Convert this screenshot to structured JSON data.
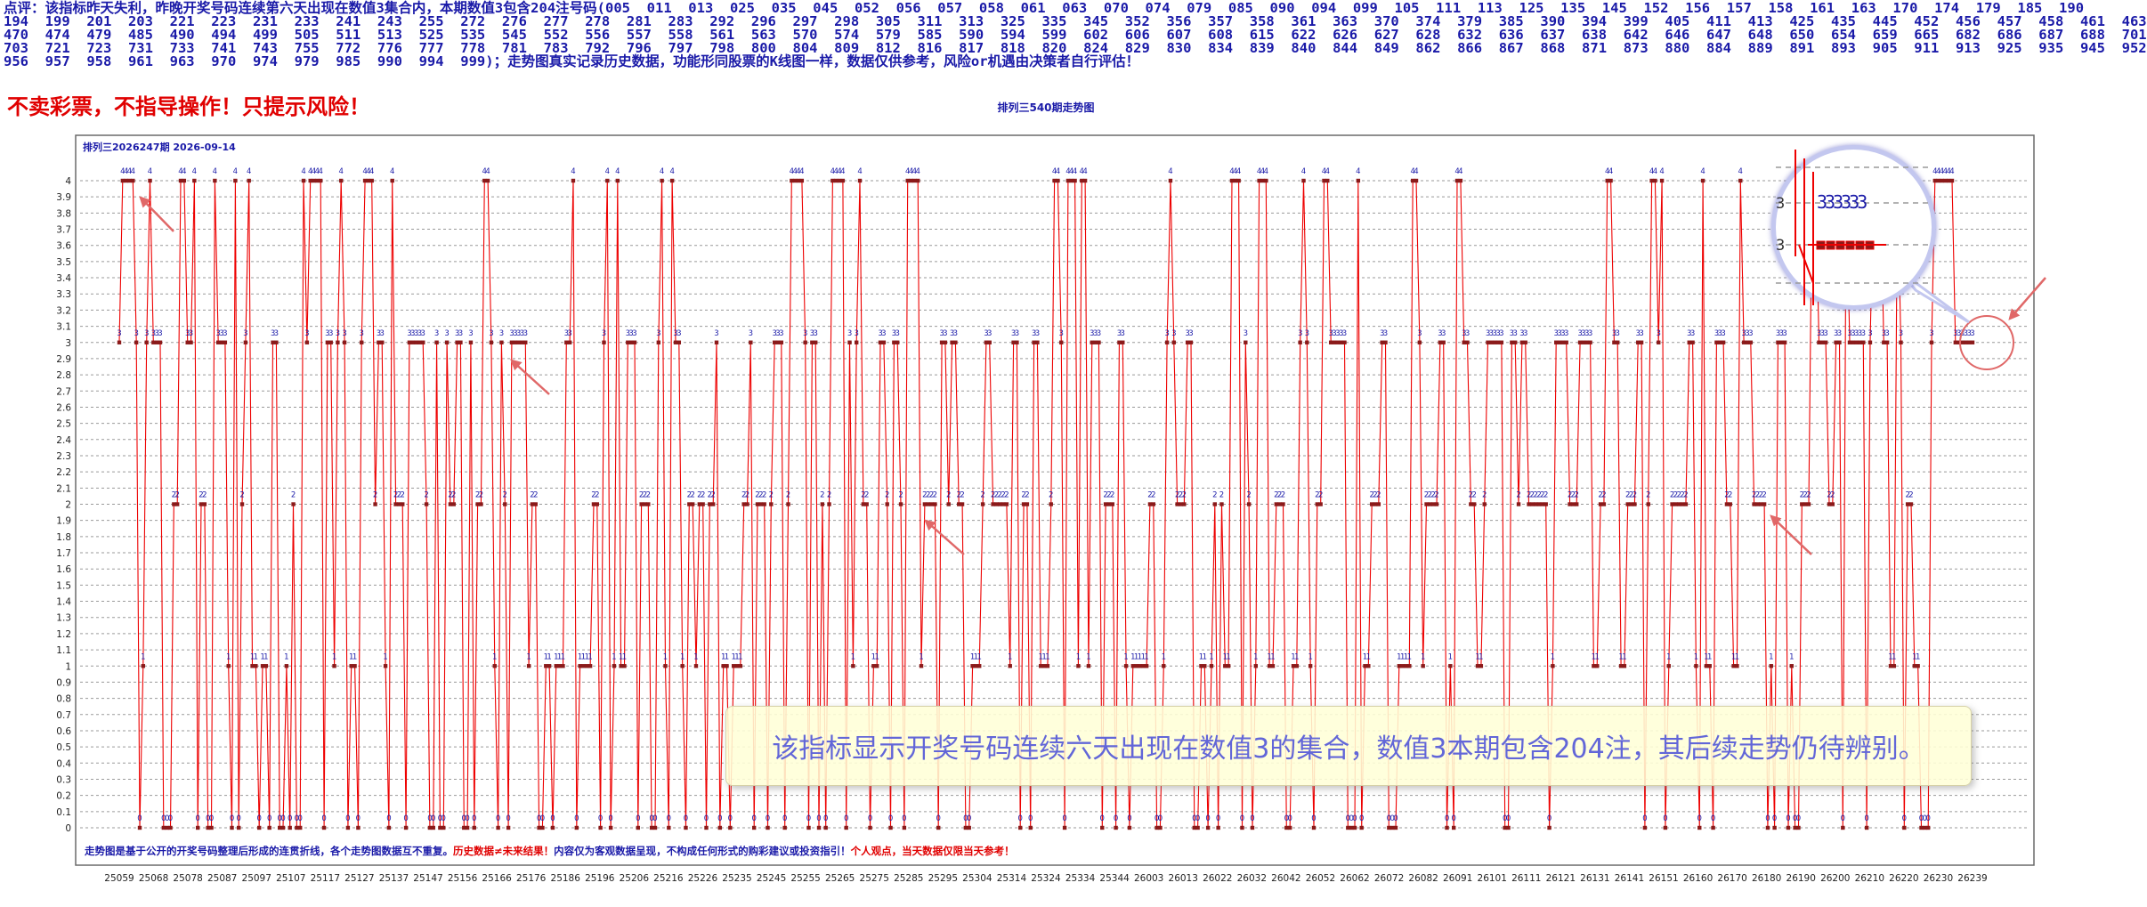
{
  "commentary": {
    "lines": [
      "点评：该指标昨天失利，昨晚开奖号码连续第六天出现在数值3集合内，本期数值3包含204注号码(005  011  013  025  035  045  052  056  057  058  061  063  070  074  079  085  090  094  099  105  111  113  125  135  145  152  156  157  158  161  163  170  174  179  185  190",
      "194  199  201  203  221  223  231  233  241  243  255  272  276  277  278  281  283  292  296  297  298  305  311  313  325  335  345  352  356  357  358  361  363  370  374  379  385  390  394  399  405  411  413  425  435  445  452  456  457  458  461  463",
      "470  474  479  485  490  494  499  505  511  513  525  535  545  552  556  557  558  561  563  570  574  579  585  590  594  599  602  606  607  608  615  622  626  627  628  632  636  637  638  642  646  647  648  650  654  659  665  682  686  687  688  701",
      "703  721  723  731  733  741  743  755  772  776  777  778  781  783  792  796  797  798  800  804  809  812  816  817  818  820  824  829  830  834  839  840  844  849  862  866  867  868  871  873  880  884  889  891  893  905  911  913  925  935  945  952",
      "956  957  958  961  963  970  974  979  985  990  994  999)；走势图真实记录历史数据，功能形同股票的K线图一样，数据仅供参考，风险or机遇由决策者自行评估！"
    ]
  },
  "warning_text": "不卖彩票，不指导操作！只提示风险！",
  "chart_title": "排列三540期走势图",
  "footnote": {
    "part1": "走势图是基于公开的开奖号码整理后形成的连贯折线，各个走势图数据互不重复。",
    "part2": "历史数据≠未来结果！",
    "part3": "内容仅为客观数据呈现，不构成任何形式的购彩建议或投资指引！",
    "part4": "个人观点，当天数据仅限当天参考！"
  },
  "callout_text": "该指标显示开奖号码连续六天出现在数值3的集合，数值3本期包含204注，其后续走势仍待辨别。",
  "colors": {
    "line": "#ee0000",
    "marker": "#8b1a1a",
    "label": "#1a1aa8",
    "grid": "#9a9a9a",
    "arrow": "#e06868",
    "highlight": "#e06868"
  },
  "chart_data": {
    "type": "line",
    "title": "排列三2026247期  2026-09-14",
    "ylim": [
      0,
      4
    ],
    "yticks": [
      "0",
      "0.1",
      "0.2",
      "0.3",
      "0.4",
      "0.5",
      "0.6",
      "0.7",
      "0.8",
      "0.9",
      "1",
      "1.1",
      "1.2",
      "1.3",
      "1.4",
      "1.5",
      "1.6",
      "1.7",
      "1.8",
      "1.9",
      "2",
      "2.1",
      "2.2",
      "2.3",
      "2.4",
      "2.5",
      "2.6",
      "2.7",
      "2.8",
      "2.9",
      "3",
      "3.1",
      "3.2",
      "3.3",
      "3.4",
      "3.5",
      "3.6",
      "3.7",
      "3.8",
      "3.9",
      "4"
    ],
    "grid": true,
    "point_labels": true,
    "point_count": 540,
    "x_tick_labels": [
      "25059",
      "25068",
      "25078",
      "25087",
      "25097",
      "25107",
      "25117",
      "25127",
      "25137",
      "25147",
      "25156",
      "25166",
      "25176",
      "25186",
      "25196",
      "25206",
      "25216",
      "25226",
      "25235",
      "25245",
      "25255",
      "25265",
      "25275",
      "25285",
      "25295",
      "25304",
      "25314",
      "25324",
      "25334",
      "25344",
      "26003",
      "26013",
      "26022",
      "26032",
      "26042",
      "26052",
      "26062",
      "26072",
      "26082",
      "26091",
      "26101",
      "26111",
      "26121",
      "26131",
      "26141",
      "26151",
      "26160",
      "26170",
      "26180",
      "26190",
      "26200",
      "26210",
      "26220",
      "26230",
      "26239"
    ],
    "values": [
      3,
      4,
      4,
      4,
      4,
      3,
      0,
      1,
      3,
      4,
      3,
      3,
      3,
      0,
      0,
      0,
      2,
      2,
      4,
      4,
      3,
      3,
      4,
      0,
      2,
      2,
      0,
      0,
      4,
      3,
      3,
      3,
      1,
      0,
      4,
      0,
      2,
      3,
      4,
      1,
      1,
      0,
      1,
      1,
      0,
      3,
      3,
      0,
      0,
      1,
      0,
      2,
      0,
      0,
      4,
      3,
      4,
      4,
      4,
      4,
      0,
      3,
      3,
      1,
      3,
      4,
      3,
      0,
      1,
      1,
      0,
      3,
      4,
      4,
      4,
      2,
      3,
      3,
      1,
      0,
      4,
      2,
      2,
      2,
      0,
      3,
      3,
      3,
      3,
      3,
      2,
      0,
      0,
      3,
      0,
      0,
      3,
      2,
      2,
      3,
      3,
      0,
      0,
      3,
      0,
      2,
      2,
      4,
      4,
      3,
      1,
      0,
      3,
      2,
      0,
      3,
      3,
      3,
      3,
      3,
      1,
      2,
      2,
      0,
      0,
      1,
      1,
      0,
      1,
      1,
      1,
      3,
      3,
      4,
      0,
      1,
      1,
      1,
      1,
      2,
      2,
      0,
      3,
      4,
      0,
      1,
      4,
      1,
      1,
      3,
      3,
      3,
      0,
      2,
      2,
      2,
      0,
      0,
      3,
      4,
      1,
      0,
      4,
      3,
      3,
      1,
      0,
      2,
      2,
      1,
      2,
      2,
      0,
      2,
      2,
      3,
      0,
      1,
      1,
      0,
      1,
      1,
      1,
      2,
      2,
      3,
      0,
      2,
      2,
      2,
      0,
      2,
      3,
      3,
      3,
      0,
      2,
      4,
      4,
      4,
      4,
      3,
      0,
      3,
      3,
      0,
      2,
      0,
      2,
      4,
      4,
      4,
      4,
      0,
      3,
      1,
      3,
      4,
      2,
      2,
      0,
      1,
      1,
      3,
      3,
      2,
      0,
      3,
      3,
      2,
      0,
      4,
      4,
      4,
      4,
      1,
      2,
      2,
      2,
      2,
      0,
      3,
      3,
      2,
      3,
      3,
      2,
      2,
      0,
      0,
      1,
      1,
      1,
      2,
      3,
      3,
      2,
      2,
      2,
      2,
      2,
      1,
      3,
      3,
      0,
      2,
      2,
      0,
      3,
      3,
      1,
      1,
      1,
      2,
      4,
      4,
      3,
      0,
      4,
      4,
      4,
      1,
      4,
      4,
      1,
      3,
      3,
      3,
      0,
      2,
      2,
      2,
      0,
      3,
      3,
      1,
      0,
      1,
      1,
      1,
      1,
      1,
      2,
      2,
      0,
      0,
      1,
      3,
      4,
      3,
      2,
      2,
      2,
      3,
      3,
      0,
      0,
      1,
      1,
      0,
      1,
      2,
      0,
      2,
      1,
      1,
      4,
      4,
      4,
      0,
      3,
      2,
      0,
      1,
      4,
      4,
      4,
      1,
      1,
      2,
      2,
      2,
      0,
      0,
      1,
      1,
      3,
      4,
      3,
      1,
      0,
      2,
      2,
      4,
      4,
      3,
      3,
      3,
      3,
      3,
      0,
      0,
      0,
      4,
      0,
      1,
      1,
      2,
      2,
      2,
      3,
      3,
      0,
      0,
      0,
      1,
      1,
      1,
      1,
      4,
      4,
      3,
      1,
      2,
      2,
      2,
      2,
      3,
      3,
      0,
      1,
      0,
      4,
      4,
      3,
      3,
      2,
      2,
      1,
      1,
      2,
      3,
      3,
      3,
      3,
      3,
      0,
      0,
      3,
      3,
      2,
      3,
      3,
      2,
      2,
      2,
      2,
      2,
      2,
      0,
      1,
      3,
      3,
      3,
      3,
      2,
      2,
      2,
      3,
      3,
      3,
      3,
      1,
      1,
      2,
      2,
      4,
      4,
      3,
      3,
      1,
      1,
      2,
      2,
      2,
      3,
      3,
      0,
      2,
      4,
      4,
      3,
      4,
      0,
      1,
      2,
      2,
      2,
      2,
      2,
      3,
      3,
      1,
      0,
      4,
      1,
      1,
      0,
      3,
      3,
      3,
      2,
      2,
      1,
      1,
      4,
      3,
      3,
      3,
      2,
      2,
      2,
      2,
      0,
      1,
      0,
      3,
      3,
      3,
      0,
      1,
      0,
      0,
      2,
      2,
      2,
      4,
      4,
      3,
      3,
      3,
      2,
      2,
      3,
      3,
      0,
      4,
      3,
      3,
      3,
      3,
      3,
      0,
      3,
      4,
      4,
      4,
      3,
      3,
      1,
      1,
      4,
      3,
      0,
      2,
      2,
      1,
      1,
      0,
      0,
      0,
      3,
      4,
      4,
      4,
      4,
      4,
      4,
      3,
      3,
      3,
      3,
      3,
      3
    ],
    "last_run": [
      "3",
      "3",
      "3",
      "3",
      "3",
      "3"
    ]
  }
}
